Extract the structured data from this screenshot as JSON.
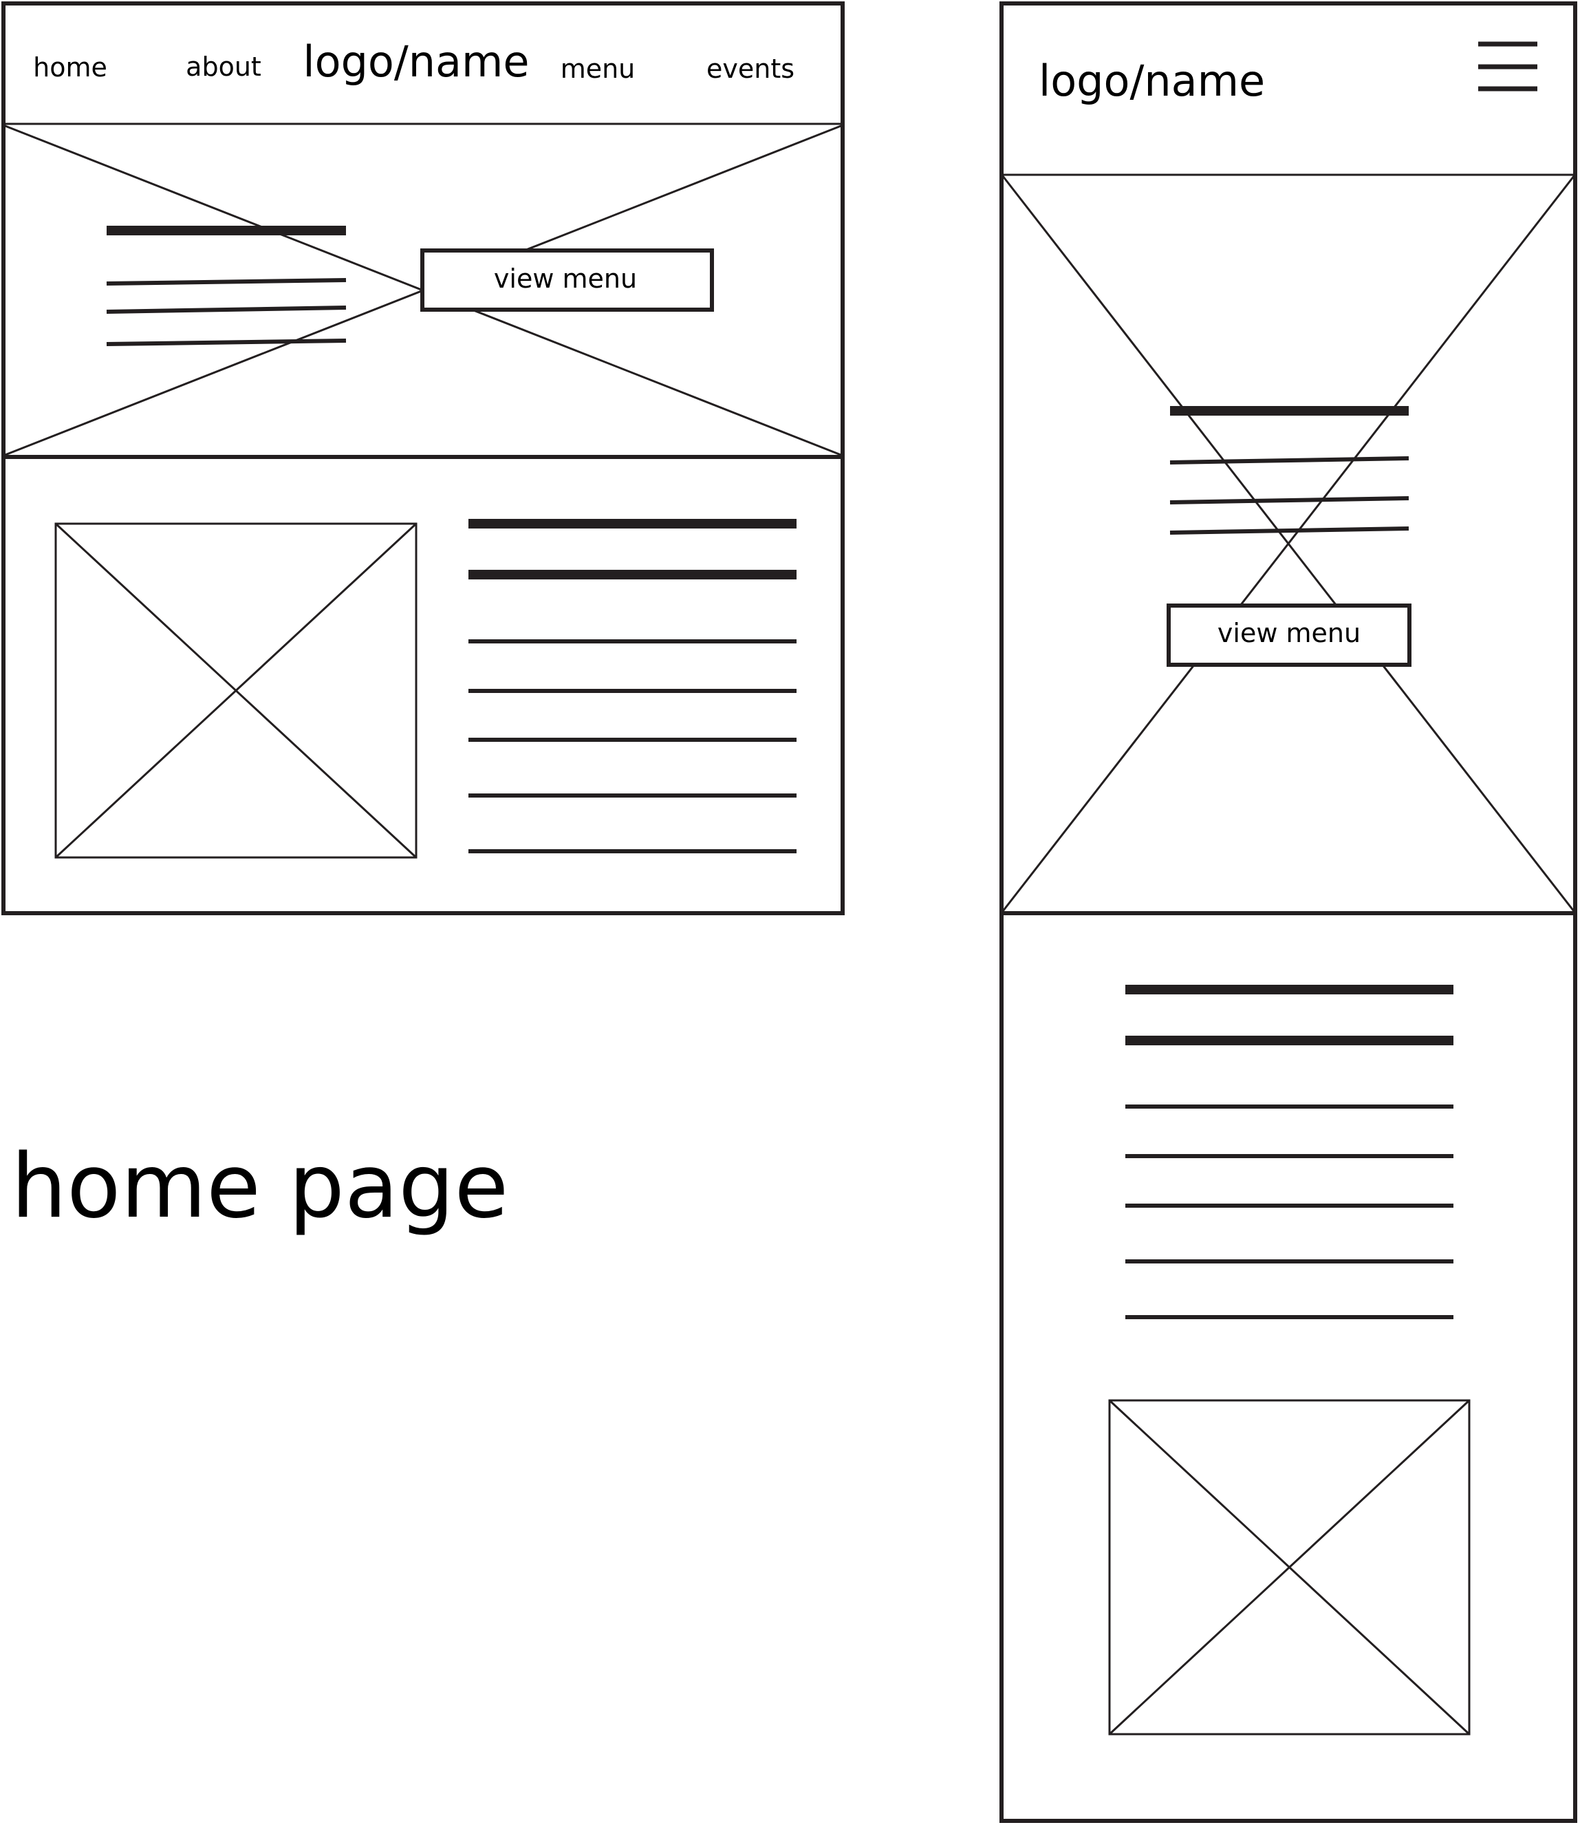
{
  "desktop": {
    "nav": {
      "home": "home",
      "about": "about",
      "logo": "logo/name",
      "menu": "menu",
      "events": "events"
    },
    "hero": {
      "button_label": "view menu"
    }
  },
  "caption": "home page",
  "mobile": {
    "header": {
      "logo": "logo/name",
      "menu_icon": "hamburger-icon"
    },
    "hero": {
      "button_label": "view menu"
    }
  }
}
